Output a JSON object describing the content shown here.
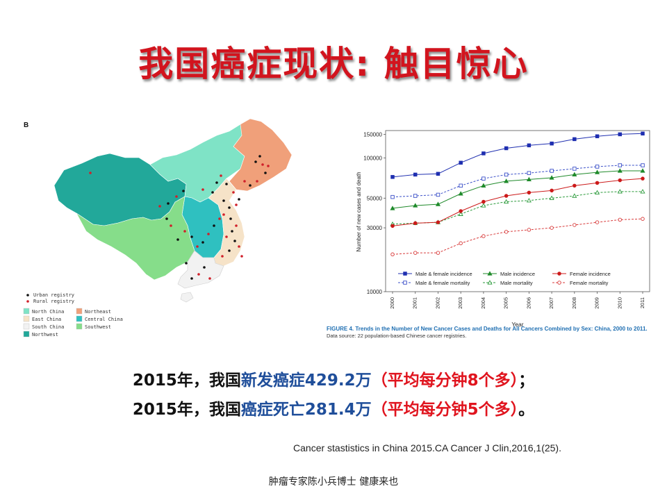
{
  "title": "我国癌症现状: 触目惊心",
  "map": {
    "panel_label": "B",
    "registry_legend": [
      {
        "label": "Urban registry",
        "color": "#111111"
      },
      {
        "label": "Rural registry",
        "color": "#d0202a"
      }
    ],
    "region_legend": [
      {
        "label": "North China",
        "color": "#7fe3c6"
      },
      {
        "label": "Northeast",
        "color": "#f0a07a"
      },
      {
        "label": "East China",
        "color": "#f6e3c8"
      },
      {
        "label": "Central China",
        "color": "#2fc0c0"
      },
      {
        "label": "South China",
        "color": "#f2f2f2"
      },
      {
        "label": "Southwest",
        "color": "#86dd8a"
      },
      {
        "label": "Northwest",
        "color": "#22a89a"
      }
    ]
  },
  "chart_data": {
    "type": "line",
    "caption": "FIGURE 4. Trends in the Number of New Cancer Cases and Deaths for All Cancers Combined by Sex: China, 2000 to 2011.",
    "source": "Data source: 22 population-based Chinese cancer registries.",
    "xlabel": "Year",
    "ylabel": "Number of new cases and death",
    "yscale": "log",
    "ylim": [
      10000,
      160000
    ],
    "yticks": [
      10000,
      30000,
      50000,
      100000,
      150000
    ],
    "x": [
      "2000",
      "2001",
      "2002",
      "2003",
      "2004",
      "2005",
      "2006",
      "2007",
      "2008",
      "2009",
      "2010",
      "2011"
    ],
    "series": [
      {
        "name": "Male & female incidence",
        "color": "#1f2fb0",
        "marker": "square-filled",
        "dash": "solid",
        "values": [
          72000,
          75000,
          76000,
          92000,
          108000,
          118000,
          124000,
          128000,
          138000,
          145000,
          150000,
          152000
        ]
      },
      {
        "name": "Male & female mortality",
        "color": "#3a4fc8",
        "marker": "square-open",
        "dash": "dashed",
        "values": [
          51000,
          52000,
          53000,
          62000,
          70000,
          75000,
          77000,
          80000,
          83000,
          86000,
          88000,
          88000
        ]
      },
      {
        "name": "Male incidence",
        "color": "#1f8a2a",
        "marker": "triangle-filled",
        "dash": "solid",
        "values": [
          42000,
          44000,
          45000,
          54000,
          62000,
          67000,
          69000,
          71000,
          75000,
          78000,
          80000,
          80000
        ]
      },
      {
        "name": "Male mortality",
        "color": "#2a9a3a",
        "marker": "triangle-open",
        "dash": "dashed",
        "values": [
          32000,
          32500,
          33000,
          38000,
          44000,
          47000,
          48000,
          50000,
          52000,
          55000,
          56000,
          56000
        ]
      },
      {
        "name": "Female incidence",
        "color": "#cc1a1a",
        "marker": "circle-filled",
        "dash": "solid",
        "values": [
          31000,
          32500,
          33000,
          40000,
          47000,
          52000,
          55000,
          57000,
          62000,
          65000,
          68000,
          70000
        ]
      },
      {
        "name": "Female mortality",
        "color": "#d83a3a",
        "marker": "circle-open",
        "dash": "dashed",
        "values": [
          19000,
          19500,
          19500,
          23000,
          26000,
          28000,
          29000,
          30000,
          31500,
          33000,
          34500,
          35000
        ]
      }
    ]
  },
  "stats": {
    "line1": {
      "part1": "2015年，我国",
      "part2": "新发癌症429.2万",
      "part3": "（平均每分钟8个多）",
      "part4": "；"
    },
    "line2": {
      "part1": "2015年，我国",
      "part2": "癌症死亡281.4万",
      "part3": "（平均每分钟5个多）",
      "part4": "。"
    }
  },
  "citation": "Cancer stastistics in China 2015.CA Cancer J Clin,2016,1(25).",
  "footer": "肿瘤专家陈小兵博士  健康来也"
}
